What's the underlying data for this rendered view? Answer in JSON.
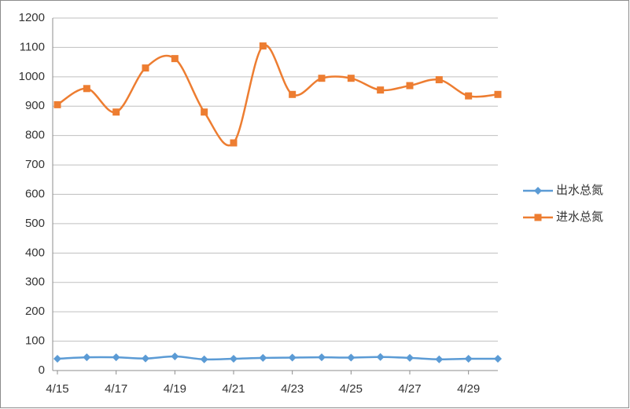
{
  "chart_data": {
    "type": "line",
    "categories": [
      "4/15",
      null,
      "4/17",
      null,
      "4/19",
      null,
      "4/21",
      null,
      "4/23",
      null,
      "4/25",
      null,
      "4/27",
      null,
      "4/29",
      null
    ],
    "series": [
      {
        "name": "出水总氮",
        "color": "#5b9bd5",
        "marker": "diamond",
        "values": [
          40,
          45,
          45,
          41,
          48,
          38,
          40,
          43,
          44,
          45,
          44,
          46,
          43,
          38,
          40,
          40
        ]
      },
      {
        "name": "进水总氮",
        "color": "#ed7d31",
        "marker": "square",
        "values": [
          905,
          960,
          880,
          1030,
          1062,
          880,
          775,
          1105,
          940,
          995,
          995,
          955,
          970,
          990,
          935,
          940
        ]
      }
    ],
    "ylim": [
      0,
      1200
    ],
    "yticks": [
      0,
      100,
      200,
      300,
      400,
      500,
      600,
      700,
      800,
      900,
      1000,
      1100,
      1200
    ],
    "grid": true,
    "smooth": true,
    "legend": "right"
  }
}
